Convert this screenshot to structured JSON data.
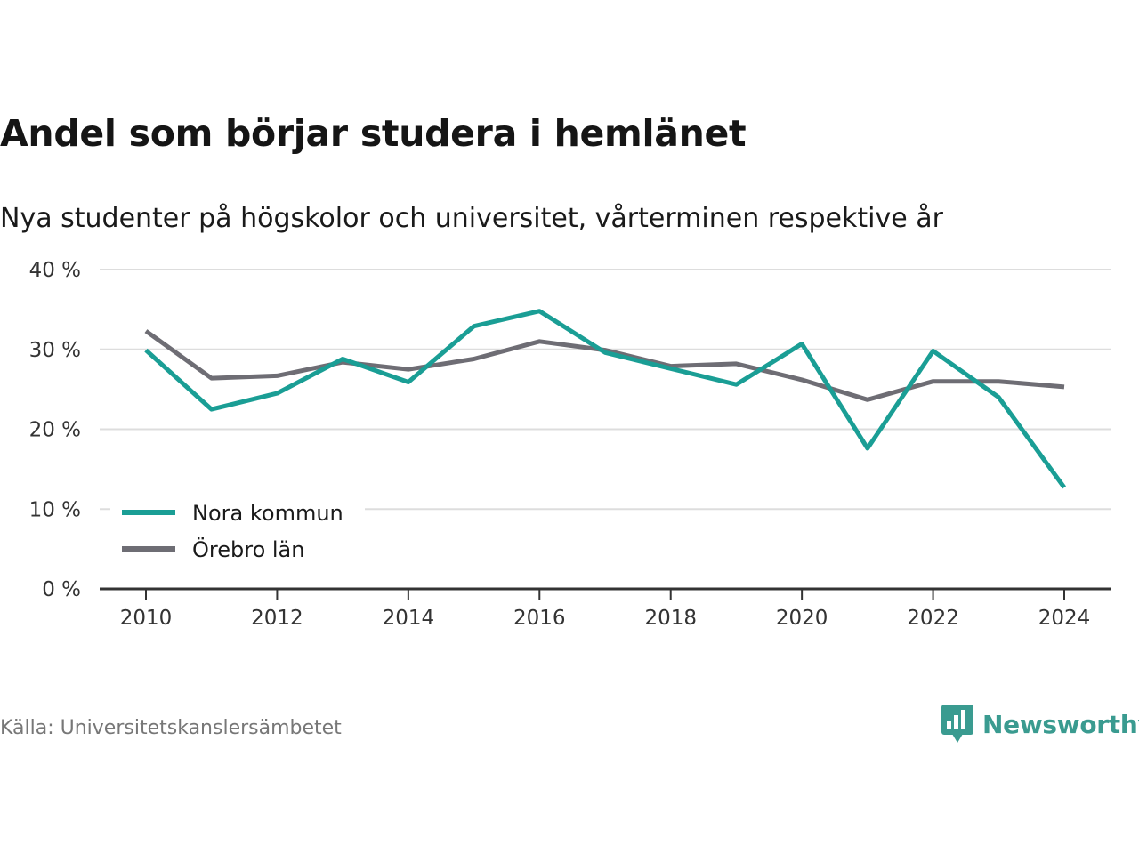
{
  "page": {
    "title": "Andel som börjar studera i hemlänet",
    "subtitle": "Nya studenter på högskolor och universitet, vårterminen respektive år",
    "source": "Källa: Universitetskanslersämbetet",
    "brand": "Newsworthy"
  },
  "colors": {
    "nora": "#1a9e95",
    "orebro": "#6e6d74",
    "grid": "#dddddd",
    "axis": "#333333",
    "brand": "#3a9b90"
  },
  "chart_data": {
    "type": "line",
    "title": "Andel som börjar studera i hemlänet",
    "subtitle": "Nya studenter på högskolor och universitet, vårterminen respektive år",
    "x": [
      2010,
      2011,
      2012,
      2013,
      2014,
      2015,
      2016,
      2017,
      2018,
      2019,
      2020,
      2021,
      2022,
      2023,
      2024
    ],
    "x_ticks": [
      2010,
      2012,
      2014,
      2016,
      2018,
      2020,
      2022,
      2024
    ],
    "x_tick_labels": [
      "2010",
      "2012",
      "2014",
      "2016",
      "2018",
      "2020",
      "2022",
      "2024"
    ],
    "y_ticks": [
      0,
      10,
      20,
      30,
      40
    ],
    "y_tick_labels": [
      "0 %",
      "10 %",
      "20 %",
      "30 %",
      "40 %"
    ],
    "ylim": [
      0,
      40
    ],
    "grid": "horizontal",
    "legend_position": "bottom-left",
    "series": [
      {
        "name": "Nora kommun",
        "color": "#1a9e95",
        "values": [
          29.9,
          22.5,
          24.5,
          28.8,
          25.9,
          32.9,
          34.8,
          29.6,
          27.6,
          25.6,
          30.7,
          17.6,
          29.8,
          24.0,
          12.7
        ]
      },
      {
        "name": "Örebro län",
        "color": "#6e6d74",
        "values": [
          32.3,
          26.4,
          26.7,
          28.4,
          27.5,
          28.8,
          31.0,
          29.9,
          27.9,
          28.2,
          26.2,
          23.7,
          26.0,
          26.0,
          25.3
        ]
      }
    ]
  }
}
